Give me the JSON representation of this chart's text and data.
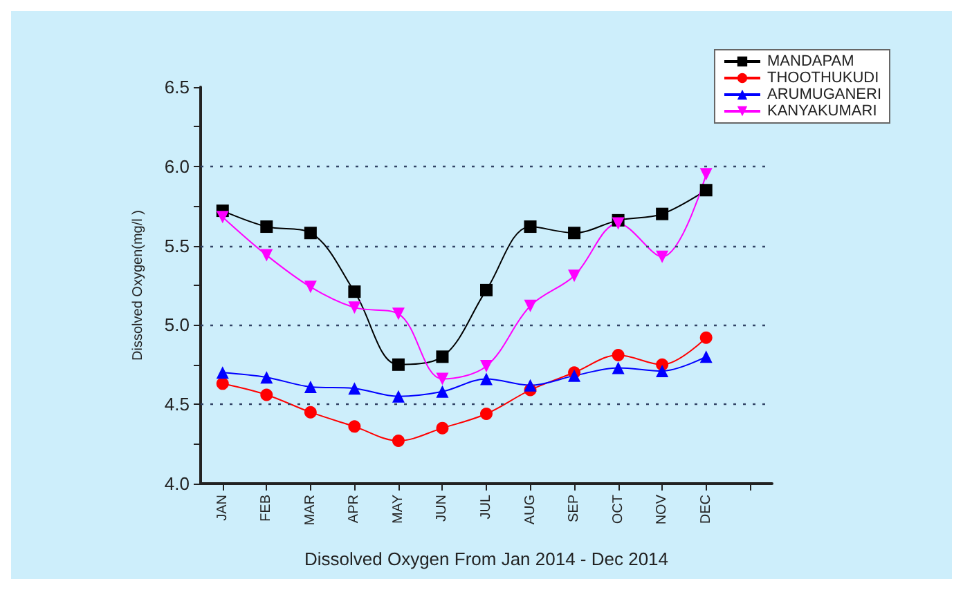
{
  "chart_data": {
    "type": "line",
    "xlabel": "Dissolved Oxygen From Jan 2014 - Dec 2014",
    "ylabel": "Dissolved Oxygen(mg/l )",
    "categories": [
      "JAN",
      "FEB",
      "MAR",
      "APR",
      "MAY",
      "JUN",
      "JUL",
      "AUG",
      "SEP",
      "OCT",
      "NOV",
      "DEC",
      null
    ],
    "series": [
      {
        "name": "MANDAPAM",
        "color": "#000000",
        "marker": "square",
        "values": [
          5.72,
          5.62,
          5.58,
          5.21,
          4.75,
          4.8,
          5.22,
          5.62,
          5.58,
          5.66,
          5.7,
          5.85,
          null
        ]
      },
      {
        "name": "THOOTHUKUDI",
        "color": "#ff0000",
        "marker": "circle",
        "values": [
          4.63,
          4.56,
          4.45,
          4.36,
          4.27,
          4.35,
          4.44,
          4.59,
          4.7,
          4.81,
          4.75,
          4.92,
          null
        ]
      },
      {
        "name": "ARUMUGANERI",
        "color": "#0000ff",
        "marker": "triangle",
        "values": [
          4.7,
          4.67,
          4.61,
          4.6,
          4.55,
          4.58,
          4.66,
          4.62,
          4.68,
          4.73,
          4.71,
          4.8,
          null
        ]
      },
      {
        "name": "KANYAKUMARI",
        "color": "#ff00ff",
        "marker": "triangle-down",
        "values": [
          5.68,
          5.44,
          5.24,
          5.11,
          5.07,
          4.66,
          4.74,
          5.12,
          5.31,
          5.64,
          5.43,
          5.95,
          null
        ]
      }
    ],
    "ylim": [
      4,
      6.5
    ],
    "yticks": [
      {
        "value": 4,
        "label": "4.0"
      },
      {
        "value": 4.25,
        "label": null
      },
      {
        "value": 4.5,
        "label": "4.5"
      },
      {
        "value": 4.75,
        "label": null
      },
      {
        "value": 5,
        "label": "5.0"
      },
      {
        "value": 5.25,
        "label": null
      },
      {
        "value": 5.5,
        "label": "5.5"
      },
      {
        "value": 5.75,
        "label": null
      },
      {
        "value": 6,
        "label": "6.0"
      },
      {
        "value": 6.25,
        "label": null
      },
      {
        "value": 6.5,
        "label": "6.5"
      }
    ],
    "grid": "y",
    "legend": "top right"
  }
}
